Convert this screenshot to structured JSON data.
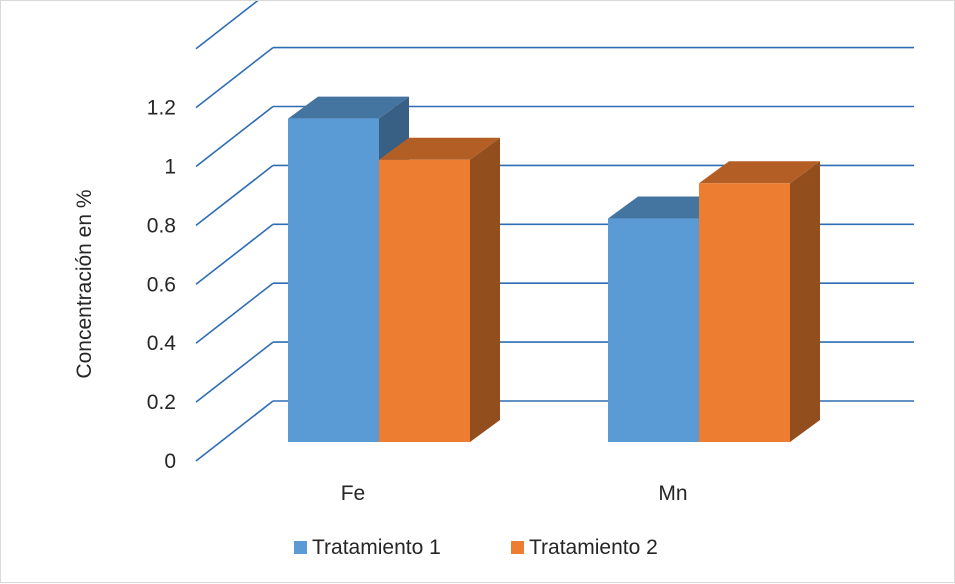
{
  "chart_data": {
    "type": "bar",
    "categories": [
      "Fe",
      "Mn"
    ],
    "series": [
      {
        "name": "Tratamiento 1",
        "values": [
          1.1,
          0.76
        ],
        "color": "#5b9bd5"
      },
      {
        "name": "Tratamiento 2",
        "values": [
          0.96,
          0.88
        ],
        "color": "#ed7d31"
      }
    ],
    "title": "",
    "xlabel": "",
    "ylabel": "Concentración en %",
    "ylim": [
      0,
      1.2
    ],
    "yticks": [
      "0",
      "0.2",
      "0.4",
      "0.6",
      "0.8",
      "1",
      "1.2"
    ],
    "extra_gridline_value": 1.4,
    "grid": true,
    "legend_position": "bottom",
    "style": "3d-clustered-column",
    "gridline_color": "#2e6db4"
  }
}
